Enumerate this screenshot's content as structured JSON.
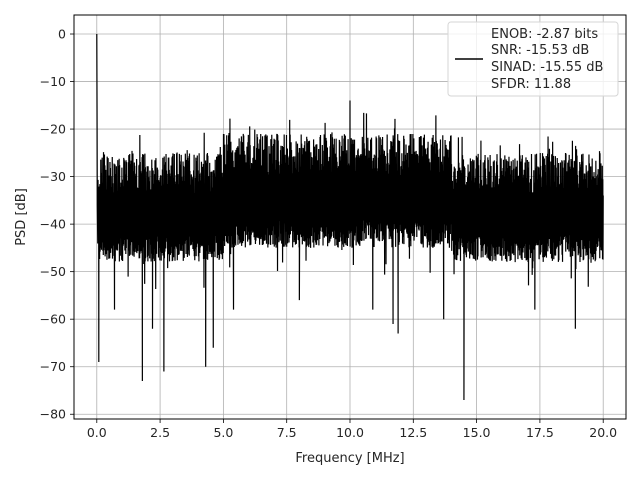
{
  "chart_data": {
    "type": "line",
    "title": "",
    "xlabel": "Frequency [MHz]",
    "ylabel": "PSD [dB]",
    "xlim": [
      -0.9,
      20.9
    ],
    "ylim": [
      -81,
      4
    ],
    "xticks": [
      0.0,
      2.5,
      5.0,
      7.5,
      10.0,
      12.5,
      15.0,
      17.5,
      20.0
    ],
    "xtick_labels": [
      "0.0",
      "2.5",
      "5.0",
      "7.5",
      "10.0",
      "12.5",
      "15.0",
      "17.5",
      "20.0"
    ],
    "yticks": [
      0,
      -10,
      -20,
      -30,
      -40,
      -50,
      -60,
      -70,
      -80
    ],
    "ytick_labels": [
      "0",
      "−10",
      "−20",
      "−30",
      "−40",
      "−50",
      "−60",
      "−70",
      "−80"
    ],
    "grid": true,
    "legend_position": "top-right",
    "line_color": "#000000",
    "series": [
      {
        "x_range": [
          0,
          20
        ],
        "dc_peak": {
          "x": 0.0,
          "y": 0.0
        },
        "upper_envelope_db": -23,
        "lower_envelope_db": -45,
        "max_peak": {
          "x": 10.0,
          "y": -14
        },
        "notable_dips": [
          {
            "x": 0.08,
            "y": -69
          },
          {
            "x": 0.7,
            "y": -58
          },
          {
            "x": 1.8,
            "y": -73
          },
          {
            "x": 2.2,
            "y": -62
          },
          {
            "x": 2.65,
            "y": -71
          },
          {
            "x": 4.3,
            "y": -70
          },
          {
            "x": 4.6,
            "y": -66
          },
          {
            "x": 5.4,
            "y": -58
          },
          {
            "x": 8.0,
            "y": -56
          },
          {
            "x": 10.9,
            "y": -58
          },
          {
            "x": 11.7,
            "y": -61
          },
          {
            "x": 11.9,
            "y": -63
          },
          {
            "x": 13.7,
            "y": -60
          },
          {
            "x": 14.5,
            "y": -77
          },
          {
            "x": 17.3,
            "y": -58
          },
          {
            "x": 18.9,
            "y": -62
          }
        ]
      }
    ],
    "legend": {
      "lines": [
        "ENOB: -2.87 bits",
        "SNR: -15.53 dB",
        "SINAD: -15.55 dB",
        "SFDR: 11.88"
      ]
    }
  }
}
